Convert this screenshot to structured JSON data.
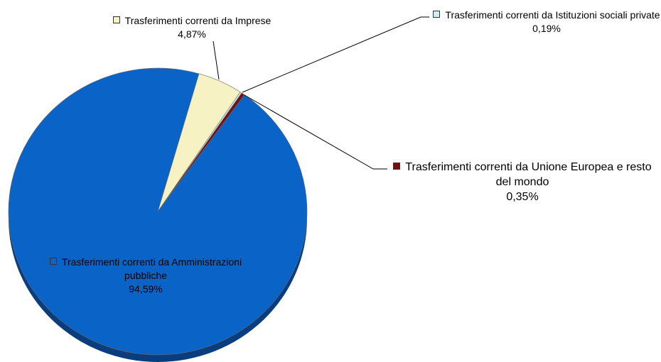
{
  "chart_data": {
    "type": "pie",
    "categories": [
      "Trasferimenti correnti da Imprese",
      "Trasferimenti correnti da Istituzioni sociali private",
      "Trasferimenti correnti da Unione Europea e resto del mondo",
      "Trasferimenti correnti da Amministrazioni pubbliche"
    ],
    "values": [
      4.87,
      0.19,
      0.35,
      94.59
    ],
    "value_labels": [
      "4,87%",
      "0,19%",
      "0,35%",
      "94,59%"
    ],
    "colors": [
      "#f6f2c4",
      "#cdeef4",
      "#7a0c0c",
      "#0a63c7"
    ]
  }
}
